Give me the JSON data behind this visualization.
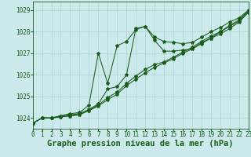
{
  "title": "Graphe pression niveau de la mer (hPa)",
  "background_color": "#cceaeb",
  "grid_color": "#aad4d5",
  "line_color": "#1a5c1a",
  "xlim": [
    0,
    23
  ],
  "ylim": [
    1023.5,
    1029.4
  ],
  "yticks": [
    1024,
    1025,
    1026,
    1027,
    1028,
    1029
  ],
  "xticks": [
    0,
    1,
    2,
    3,
    4,
    5,
    6,
    7,
    8,
    9,
    10,
    11,
    12,
    13,
    14,
    15,
    16,
    17,
    18,
    19,
    20,
    21,
    22,
    23
  ],
  "series": [
    [
      1023.75,
      1024.0,
      1024.0,
      1024.1,
      1024.2,
      1024.25,
      1024.6,
      1027.0,
      1025.6,
      1027.35,
      1027.55,
      1028.1,
      1028.25,
      1027.75,
      1027.55,
      1027.5,
      1027.45,
      1027.5,
      1027.75,
      1028.0,
      1028.2,
      1028.45,
      1028.65,
      1029.0
    ],
    [
      1023.75,
      1024.0,
      1024.0,
      1024.1,
      1024.15,
      1024.2,
      1024.4,
      1024.65,
      1025.35,
      1025.45,
      1026.0,
      1028.15,
      1028.25,
      1027.6,
      1027.1,
      1027.1,
      1027.15,
      1027.2,
      1027.5,
      1027.7,
      1028.0,
      1028.3,
      1028.55,
      1029.0
    ],
    [
      1023.75,
      1024.0,
      1024.0,
      1024.05,
      1024.1,
      1024.15,
      1024.35,
      1024.55,
      1024.85,
      1025.1,
      1025.5,
      1025.8,
      1026.1,
      1026.35,
      1026.55,
      1026.75,
      1027.0,
      1027.2,
      1027.45,
      1027.7,
      1027.9,
      1028.15,
      1028.45,
      1028.9
    ],
    [
      1023.75,
      1024.0,
      1024.0,
      1024.05,
      1024.1,
      1024.15,
      1024.35,
      1024.6,
      1024.95,
      1025.2,
      1025.6,
      1025.95,
      1026.25,
      1026.48,
      1026.6,
      1026.82,
      1027.05,
      1027.28,
      1027.55,
      1027.8,
      1028.0,
      1028.25,
      1028.5,
      1028.95
    ]
  ],
  "title_fontsize": 7.5,
  "tick_fontsize": 5.5,
  "marker": "*",
  "markersize": 3,
  "linewidth": 0.75
}
